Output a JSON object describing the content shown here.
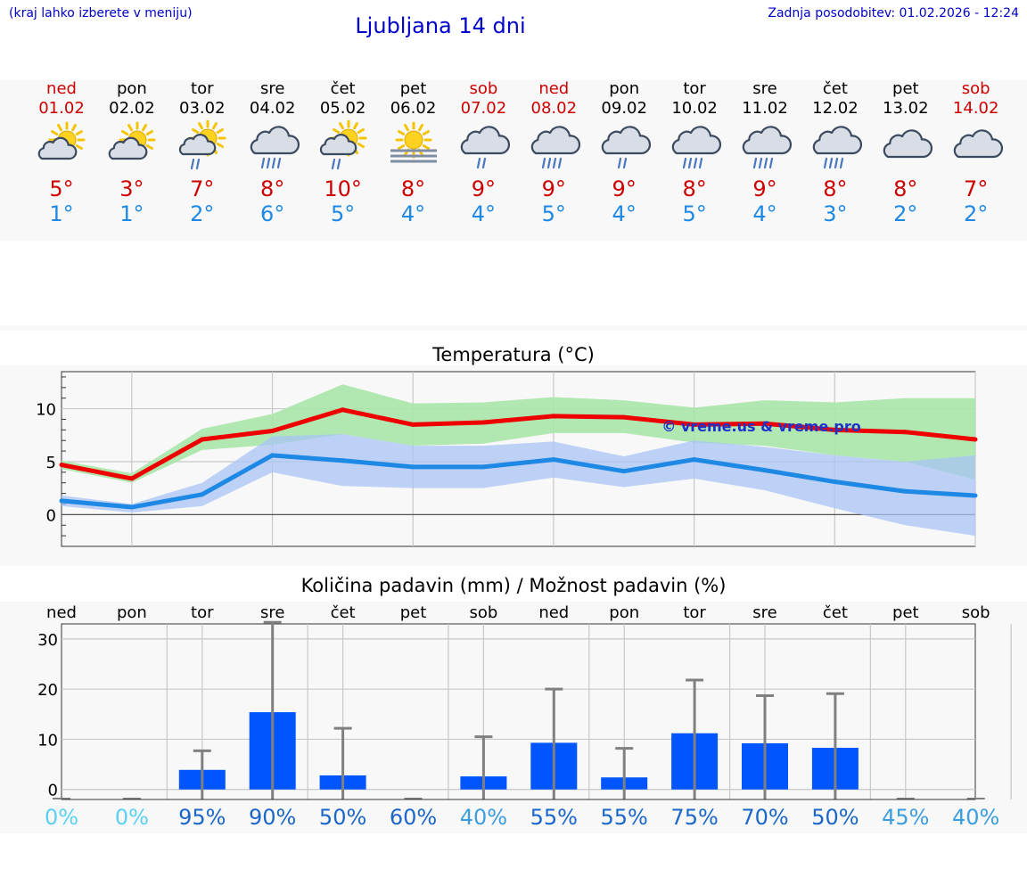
{
  "header": {
    "hint": "(kraj lahko izberete v meniju)",
    "title": "Ljubljana 14 dni",
    "updated": "Zadnja posodobitev: 01.02.2026 - 12:24"
  },
  "colors": {
    "weekday": "#000000",
    "weekend": "#cc0000",
    "max": "#ee0000",
    "min": "#1e88e5",
    "max_band": "#a8e6a8",
    "min_band": "#a9c4f5",
    "bar": "#0055ff",
    "whisker": "#808080"
  },
  "forecast": [
    {
      "day": "ned",
      "date": "01.02",
      "weekend": true,
      "icon": "partly-cloudy-icon",
      "tmax": "5°",
      "tmin": "1°"
    },
    {
      "day": "pon",
      "date": "02.02",
      "weekend": false,
      "icon": "partly-cloudy-icon",
      "tmax": "3°",
      "tmin": "1°"
    },
    {
      "day": "tor",
      "date": "03.02",
      "weekend": false,
      "icon": "sun-cloud-rain-icon",
      "tmax": "7°",
      "tmin": "2°"
    },
    {
      "day": "sre",
      "date": "04.02",
      "weekend": false,
      "icon": "rain-cloud-icon",
      "tmax": "8°",
      "tmin": "6°"
    },
    {
      "day": "čet",
      "date": "05.02",
      "weekend": false,
      "icon": "sun-cloud-rain-icon",
      "tmax": "10°",
      "tmin": "5°"
    },
    {
      "day": "pet",
      "date": "06.02",
      "weekend": false,
      "icon": "sun-fog-icon",
      "tmax": "8°",
      "tmin": "4°"
    },
    {
      "day": "sob",
      "date": "07.02",
      "weekend": true,
      "icon": "light-rain-cloud-icon",
      "tmax": "9°",
      "tmin": "4°"
    },
    {
      "day": "ned",
      "date": "08.02",
      "weekend": true,
      "icon": "rain-cloud-icon",
      "tmax": "9°",
      "tmin": "5°"
    },
    {
      "day": "pon",
      "date": "09.02",
      "weekend": false,
      "icon": "light-rain-cloud-icon",
      "tmax": "9°",
      "tmin": "4°"
    },
    {
      "day": "tor",
      "date": "10.02",
      "weekend": false,
      "icon": "rain-cloud-icon",
      "tmax": "8°",
      "tmin": "5°"
    },
    {
      "day": "sre",
      "date": "11.02",
      "weekend": false,
      "icon": "rain-cloud-icon",
      "tmax": "9°",
      "tmin": "4°"
    },
    {
      "day": "čet",
      "date": "12.02",
      "weekend": false,
      "icon": "rain-cloud-icon",
      "tmax": "8°",
      "tmin": "3°"
    },
    {
      "day": "pet",
      "date": "13.02",
      "weekend": false,
      "icon": "cloudy-icon",
      "tmax": "8°",
      "tmin": "2°"
    },
    {
      "day": "sob",
      "date": "14.02",
      "weekend": true,
      "icon": "cloudy-icon",
      "tmax": "7°",
      "tmin": "2°"
    }
  ],
  "watermark": "© vreme.us & vreme.pro",
  "chart_data": [
    {
      "type": "line",
      "title": "Temperatura (°C)",
      "x_ticks": [
        1,
        3,
        5,
        7,
        9,
        11,
        13
      ],
      "x_range": [
        0.5,
        13.5
      ],
      "ylim": [
        -3,
        13.5
      ],
      "yticks": [
        0,
        5,
        10
      ],
      "grid": true,
      "x": [
        0.5,
        1.5,
        2.5,
        3.5,
        4.5,
        5.5,
        6.5,
        7.5,
        8.5,
        9.5,
        10.5,
        11.5,
        12.5,
        13.5
      ],
      "series": [
        {
          "role": "max",
          "values": [
            4.7,
            3.4,
            7.1,
            7.9,
            9.9,
            8.5,
            8.7,
            9.3,
            9.2,
            8.5,
            8.6,
            8.0,
            7.8,
            7.1
          ],
          "band_low": [
            4.3,
            3.0,
            6.1,
            6.6,
            7.6,
            6.5,
            6.7,
            7.7,
            7.7,
            6.8,
            6.5,
            5.6,
            5.0,
            3.3
          ],
          "band_high": [
            5.1,
            3.9,
            8.1,
            9.5,
            12.3,
            10.5,
            10.6,
            11.1,
            10.8,
            10.1,
            10.8,
            10.6,
            11.0,
            11.0
          ]
        },
        {
          "role": "min",
          "values": [
            1.3,
            0.7,
            1.9,
            5.6,
            5.1,
            4.5,
            4.5,
            5.2,
            4.1,
            5.2,
            4.2,
            3.1,
            2.2,
            1.8
          ],
          "band_low": [
            0.8,
            0.2,
            0.8,
            4.0,
            2.7,
            2.5,
            2.5,
            3.5,
            2.6,
            3.4,
            2.3,
            0.6,
            -1.0,
            -2.0
          ],
          "band_high": [
            1.8,
            1.0,
            3.0,
            7.4,
            7.6,
            6.5,
            6.5,
            6.9,
            5.5,
            7.0,
            6.4,
            5.6,
            5.0,
            5.6
          ]
        }
      ]
    },
    {
      "type": "bar",
      "title": "Količina padavin (mm) / Možnost padavin (%)",
      "categories": [
        "ned",
        "pon",
        "tor",
        "sre",
        "čet",
        "pet",
        "sob",
        "ned",
        "pon",
        "tor",
        "sre",
        "čet",
        "pet",
        "sob"
      ],
      "values": [
        0,
        0,
        1.9,
        13.4,
        0.8,
        0,
        0.6,
        7.3,
        0.4,
        9.2,
        7.2,
        6.3,
        0,
        0
      ],
      "whisker_high": [
        0,
        0,
        5.7,
        31.3,
        10.2,
        0,
        8.5,
        18.0,
        6.2,
        19.8,
        16.7,
        17.1,
        0,
        0
      ],
      "probability": [
        "0%",
        "0%",
        "95%",
        "90%",
        "50%",
        "60%",
        "40%",
        "55%",
        "55%",
        "75%",
        "70%",
        "50%",
        "45%",
        "40%"
      ],
      "probability_colors": [
        "#5bd0f0",
        "#5bd0f0",
        "#1a66c9",
        "#1a66c9",
        "#1a66c9",
        "#1a66c9",
        "#3a9de0",
        "#1a66c9",
        "#1a66c9",
        "#1a66c9",
        "#1a66c9",
        "#1a66c9",
        "#3a9de0",
        "#3a9de0"
      ],
      "ylim": [
        -2,
        33
      ],
      "yticks": [
        0,
        10,
        20,
        30
      ],
      "grid": true
    }
  ]
}
